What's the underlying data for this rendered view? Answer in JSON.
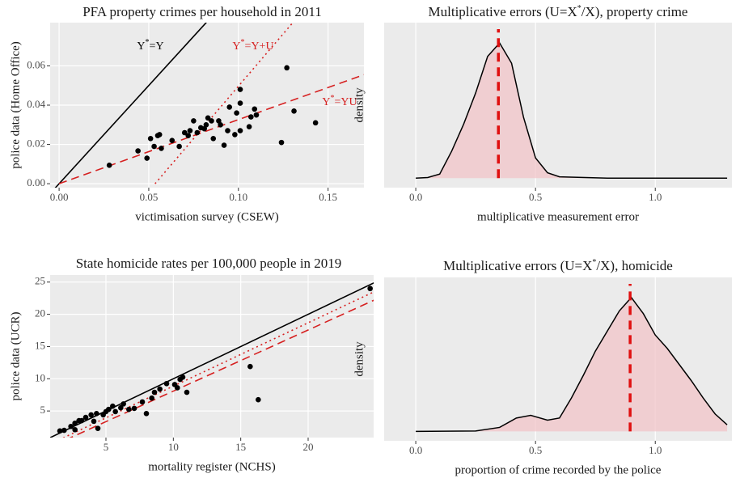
{
  "chart_data": [
    {
      "type": "scatter",
      "title": "PFA property crimes per household in 2011",
      "x_label": "victimisation survey (CSEW)",
      "y_label": "police data (Home Office)",
      "xlim": [
        -0.005,
        0.17
      ],
      "ylim": [
        -0.002,
        0.082
      ],
      "xticks": [
        {
          "value": 0,
          "label": "0.00"
        },
        {
          "value": 0.05,
          "label": "0.05"
        },
        {
          "value": 0.1,
          "label": "0.10"
        },
        {
          "value": 0.15,
          "label": "0.15"
        }
      ],
      "yticks": [
        {
          "value": 0,
          "label": "0.00"
        },
        {
          "value": 0.02,
          "label": "0.02"
        },
        {
          "value": 0.04,
          "label": "0.04"
        },
        {
          "value": 0.06,
          "label": "0.06"
        }
      ],
      "grid": true,
      "color": "#000000",
      "x": [
        0.028,
        0.044,
        0.049,
        0.051,
        0.053,
        0.055,
        0.056,
        0.057,
        0.063,
        0.067,
        0.07,
        0.072,
        0.073,
        0.075,
        0.077,
        0.079,
        0.081,
        0.082,
        0.083,
        0.085,
        0.086,
        0.089,
        0.09,
        0.092,
        0.094,
        0.095,
        0.098,
        0.099,
        0.101,
        0.101,
        0.101,
        0.106,
        0.107,
        0.109,
        0.11,
        0.124,
        0.127,
        0.131,
        0.143
      ],
      "values": [
        0.0094,
        0.0167,
        0.013,
        0.023,
        0.019,
        0.0245,
        0.025,
        0.018,
        0.022,
        0.019,
        0.026,
        0.0245,
        0.027,
        0.032,
        0.026,
        0.0285,
        0.028,
        0.03,
        0.0335,
        0.032,
        0.023,
        0.032,
        0.03,
        0.0196,
        0.027,
        0.039,
        0.025,
        0.036,
        0.048,
        0.041,
        0.027,
        0.029,
        0.034,
        0.038,
        0.035,
        0.021,
        0.059,
        0.037,
        0.031
      ],
      "lines": [
        {
          "x": [
            -0.005,
            0.09
          ],
          "values": [
            -0.005,
            0.09
          ],
          "color": "#000000",
          "style": "solid"
        },
        {
          "x": [
            0.0535,
            0.135
          ],
          "values": [
            0,
            0.087
          ],
          "color": "#d62020",
          "style": "dotted"
        },
        {
          "x": [
            0,
            0.17
          ],
          "values": [
            0,
            0.0555
          ],
          "color": "#d62020",
          "style": "dashed"
        }
      ],
      "annotations": [
        {
          "parts": [
            "Y",
            "*",
            "=Y"
          ],
          "color": "#000000"
        },
        {
          "parts": [
            "Y",
            "*",
            "=Y+U"
          ],
          "color": "#d62020"
        },
        {
          "parts": [
            "Y",
            "*",
            "=YU"
          ],
          "color": "#d62020"
        }
      ]
    },
    {
      "type": "density",
      "title_parts": [
        "Multiplicative errors (U=X",
        "*",
        "/X), property crime"
      ],
      "x_label": "multiplicative measurement error",
      "y_label": "density",
      "xlim": [
        -0.132,
        1.32
      ],
      "ylim": [
        -0.07,
        1.15
      ],
      "xticks": [
        {
          "value": 0,
          "label": "0.0"
        },
        {
          "value": 0.5,
          "label": "0.5"
        },
        {
          "value": 1,
          "label": "1.0"
        }
      ],
      "grid": true,
      "color": "#000000",
      "fill": "#f2c4c8",
      "x": [
        0,
        0.05,
        0.1,
        0.15,
        0.2,
        0.25,
        0.3,
        0.35,
        0.4,
        0.45,
        0.5,
        0.55,
        0.6,
        0.8,
        1.0,
        1.3
      ],
      "values": [
        0,
        0.005,
        0.03,
        0.2,
        0.4,
        0.63,
        0.9,
        1.0,
        0.85,
        0.45,
        0.15,
        0.04,
        0.01,
        0,
        0,
        0
      ],
      "vline": 0.345,
      "vline_color": "#e01010"
    },
    {
      "type": "scatter",
      "title": "State homicide rates per 100,000 people in 2019",
      "x_label": "mortality register (NCHS)",
      "y_label": "police data (UCR)",
      "xlim": [
        0.86,
        24.86
      ],
      "ylim": [
        0.875,
        26.1
      ],
      "xticks": [
        5,
        10,
        15,
        20
      ],
      "yticks": [
        5,
        10,
        15,
        20,
        25
      ],
      "grid": true,
      "color": "#000000",
      "x": [
        1.58,
        1.9,
        2.4,
        2.7,
        2.7,
        3.0,
        3.2,
        3.5,
        3.9,
        4.1,
        4.3,
        4.4,
        4.8,
        5.0,
        5.2,
        5.5,
        5.7,
        6.1,
        6.3,
        6.7,
        7.1,
        7.7,
        8.0,
        8.4,
        8.6,
        9.0,
        9.5,
        10.1,
        10.3,
        10.5,
        10.7,
        11.0,
        15.7,
        16.3,
        24.6
      ],
      "values": [
        1.9,
        2,
        2.6,
        3.1,
        2.1,
        3.5,
        3.5,
        4.0,
        4.4,
        3.4,
        4.6,
        2.3,
        4.4,
        4.9,
        5.25,
        5.75,
        4.9,
        5.5,
        6.1,
        5.25,
        5.4,
        6.4,
        4.6,
        7.0,
        7.9,
        8.4,
        9.25,
        9.1,
        8.6,
        9.9,
        10.25,
        7.9,
        11.9,
        6.75,
        24.0
      ],
      "lines": [
        {
          "x": [
            0.5,
            25
          ],
          "values": [
            0.5,
            25
          ],
          "color": "#000000",
          "style": "solid"
        },
        {
          "x": [
            1.5,
            25
          ],
          "values": [
            0.5,
            23.6
          ],
          "color": "#d62020",
          "style": "dotted"
        },
        {
          "x": [
            2,
            25
          ],
          "values": [
            0.5,
            22.3
          ],
          "color": "#d62020",
          "style": "dashed"
        }
      ]
    },
    {
      "type": "density",
      "title_parts": [
        "Multiplicative errors (U=X",
        "*",
        "/X), homicide"
      ],
      "x_label": "proportion of crime recorded by the police",
      "y_label": "density",
      "xlim": [
        -0.132,
        1.32
      ],
      "ylim": [
        -0.07,
        1.15
      ],
      "xticks": [
        {
          "value": 0,
          "label": "0.0"
        },
        {
          "value": 0.5,
          "label": "0.5"
        },
        {
          "value": 1,
          "label": "1.0"
        }
      ],
      "grid": true,
      "color": "#000000",
      "fill": "#f2c4c8",
      "x": [
        0,
        0.25,
        0.35,
        0.42,
        0.48,
        0.55,
        0.6,
        0.65,
        0.7,
        0.75,
        0.8,
        0.85,
        0.9,
        0.95,
        1.0,
        1.05,
        1.1,
        1.15,
        1.2,
        1.25,
        1.3
      ],
      "values": [
        0,
        0.003,
        0.03,
        0.1,
        0.12,
        0.084,
        0.1,
        0.25,
        0.42,
        0.6,
        0.75,
        0.9,
        1.0,
        0.88,
        0.72,
        0.62,
        0.5,
        0.38,
        0.25,
        0.13,
        0.05
      ],
      "vline": 0.895,
      "vline_color": "#e01010"
    }
  ]
}
